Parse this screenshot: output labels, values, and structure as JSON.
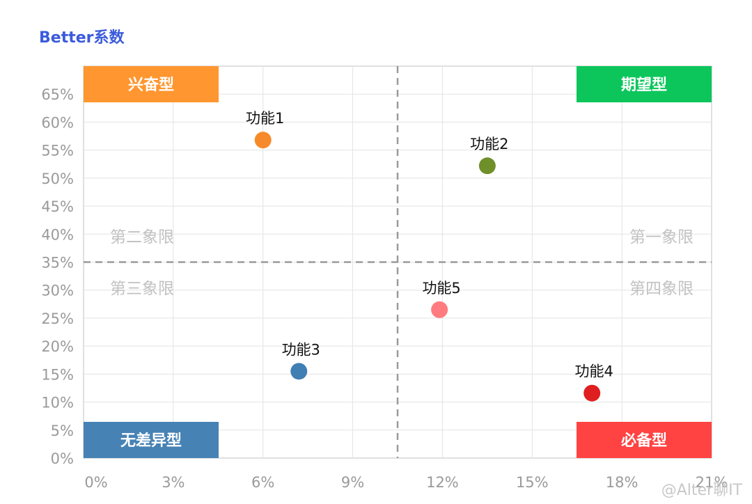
{
  "chart_data": {
    "type": "scatter",
    "title": "Better系数",
    "xlabel": "",
    "ylabel": "",
    "xlim": [
      0,
      21
    ],
    "ylim": [
      0,
      70
    ],
    "x_ticks": [
      "0%",
      "3%",
      "6%",
      "9%",
      "12%",
      "15%",
      "18%",
      "21%"
    ],
    "x_tick_values": [
      0,
      3,
      6,
      9,
      12,
      15,
      18,
      21
    ],
    "y_ticks": [
      "0%",
      "5%",
      "10%",
      "15%",
      "20%",
      "25%",
      "30%",
      "35%",
      "40%",
      "45%",
      "50%",
      "55%",
      "60%",
      "65%"
    ],
    "y_tick_values": [
      0,
      5,
      10,
      15,
      20,
      25,
      30,
      35,
      40,
      45,
      50,
      55,
      60,
      65
    ],
    "grid": true,
    "divider": {
      "x": 10.5,
      "y": 35
    },
    "points": [
      {
        "label": "功能1",
        "x": 6.0,
        "y": 56.8,
        "color": "#f68a2a"
      },
      {
        "label": "功能2",
        "x": 13.5,
        "y": 52.2,
        "color": "#6f8f2a"
      },
      {
        "label": "功能3",
        "x": 7.2,
        "y": 15.5,
        "color": "#3f7fb3"
      },
      {
        "label": "功能4",
        "x": 17.0,
        "y": 11.6,
        "color": "#df1f1f"
      },
      {
        "label": "功能5",
        "x": 11.9,
        "y": 26.5,
        "color": "#ff7b7f"
      }
    ],
    "quadrant_labels": [
      "第二象限",
      "第一象限",
      "第三象限",
      "第四象限"
    ],
    "corner_boxes": [
      {
        "label": "兴奋型",
        "position": "top-left",
        "color": "#ff962f"
      },
      {
        "label": "期望型",
        "position": "top-right",
        "color": "#0cc65c"
      },
      {
        "label": "无差异型",
        "position": "bottom-left",
        "color": "#4682b4"
      },
      {
        "label": "必备型",
        "position": "bottom-right",
        "color": "#ff4242"
      }
    ]
  },
  "watermark": "@Alter聊IT"
}
